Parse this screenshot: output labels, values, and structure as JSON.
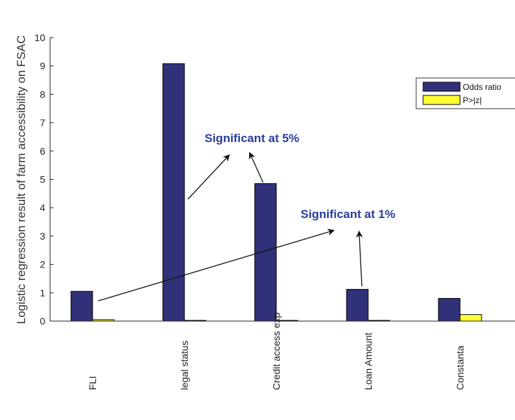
{
  "chart_data": {
    "type": "bar",
    "categories": [
      "FLI",
      "legal status",
      "Credit access exp",
      "Loan Amount",
      "Constanta"
    ],
    "series": [
      {
        "name": "Odds ratio",
        "values": [
          1.05,
          9.08,
          4.85,
          1.12,
          0.8
        ],
        "color": "#31317a"
      },
      {
        "name": "P>|z|",
        "values": [
          0.05,
          0.0,
          0.0,
          0.02,
          0.23
        ],
        "color": "#ffff33"
      }
    ],
    "ylabel": "Logistic regression result of farm accessibility on FSAC",
    "ylim": [
      0,
      10
    ],
    "yticks": [
      0,
      1,
      2,
      3,
      4,
      5,
      6,
      7,
      8,
      9,
      10
    ],
    "legend_position": "top-right",
    "grid": false,
    "annotations": [
      {
        "text": "Significant at 5%"
      },
      {
        "text": "Significant at 1%"
      }
    ]
  }
}
